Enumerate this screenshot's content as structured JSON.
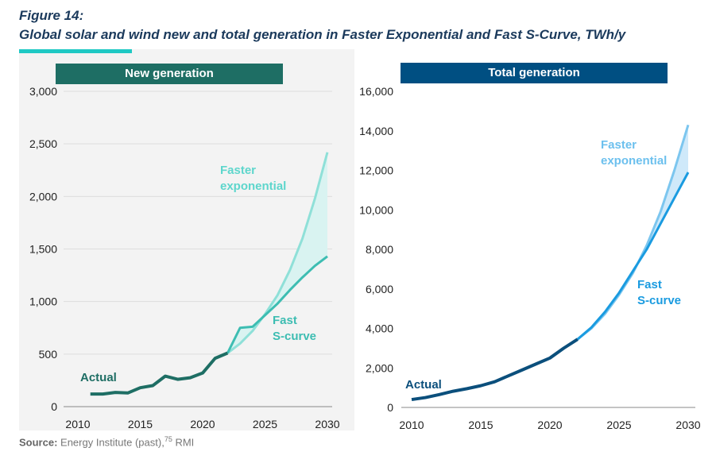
{
  "figure_label": "Figure 14:",
  "title": "Global solar and wind new and total generation in Faster Exponential and Fast S-Curve, TWh/y",
  "source": {
    "label": "Source:",
    "text": "Energy Institute (past),",
    "sup": "75",
    "tail": " RMI"
  },
  "colors": {
    "accent": "#1fc9c4",
    "left_header": "#1e6e64",
    "right_header": "#004f82"
  },
  "chart_data": [
    {
      "type": "line",
      "panel_title": "New generation",
      "ylim": [
        0,
        3000
      ],
      "yticks": [
        0,
        500,
        1000,
        1500,
        2000,
        2500,
        3000
      ],
      "yticklabels": [
        "0",
        "500",
        "1,000",
        "1,500",
        "2,000",
        "2,500",
        "3,000"
      ],
      "xlim": [
        2010,
        2030
      ],
      "xticks": [
        2010,
        2015,
        2020,
        2025,
        2030
      ],
      "grid": true,
      "series": [
        {
          "name": "Actual",
          "color": "#1e6e64",
          "x": [
            2011,
            2012,
            2013,
            2014,
            2015,
            2016,
            2017,
            2018,
            2019,
            2020,
            2021,
            2022
          ],
          "values": [
            120,
            120,
            135,
            130,
            180,
            200,
            290,
            260,
            275,
            320,
            460,
            510
          ]
        },
        {
          "name": "Faster exponential",
          "color": "#8fe0d8",
          "x": [
            2022,
            2023,
            2024,
            2025,
            2026,
            2027,
            2028,
            2029,
            2030
          ],
          "values": [
            510,
            600,
            720,
            880,
            1060,
            1300,
            1600,
            1980,
            2420
          ]
        },
        {
          "name": "Fast S-curve",
          "color": "#3dbdb2",
          "x": [
            2022,
            2023,
            2024,
            2025,
            2026,
            2027,
            2028,
            2029,
            2030
          ],
          "values": [
            510,
            750,
            760,
            870,
            980,
            1110,
            1230,
            1340,
            1430
          ]
        }
      ],
      "labels": {
        "actual": "Actual",
        "exp1": "Faster",
        "exp2": "exponential",
        "s1": "Fast",
        "s2": "S-curve"
      }
    },
    {
      "type": "line",
      "panel_title": "Total generation",
      "ylim": [
        0,
        16000
      ],
      "yticks": [
        0,
        2000,
        4000,
        6000,
        8000,
        10000,
        12000,
        14000,
        16000
      ],
      "yticklabels": [
        "0",
        "2,000",
        "4,000",
        "6,000",
        "8,000",
        "10,000",
        "12,000",
        "14,000",
        "16,000"
      ],
      "xlim": [
        2010,
        2030
      ],
      "xticks": [
        2010,
        2015,
        2020,
        2025,
        2030
      ],
      "grid": false,
      "series": [
        {
          "name": "Actual",
          "color": "#0b4f7c",
          "x": [
            2010,
            2011,
            2012,
            2013,
            2014,
            2015,
            2016,
            2017,
            2018,
            2019,
            2020,
            2021,
            2022
          ],
          "values": [
            400,
            500,
            650,
            820,
            950,
            1100,
            1300,
            1600,
            1900,
            2200,
            2500,
            3000,
            3450
          ]
        },
        {
          "name": "Faster exponential",
          "color": "#7cc6ef",
          "x": [
            2022,
            2023,
            2024,
            2025,
            2026,
            2027,
            2028,
            2029,
            2030
          ],
          "values": [
            3450,
            4000,
            4750,
            5700,
            6800,
            8200,
            9900,
            12000,
            14300
          ]
        },
        {
          "name": "Fast S-curve",
          "color": "#1a9be0",
          "x": [
            2022,
            2023,
            2024,
            2025,
            2026,
            2027,
            2028,
            2029,
            2030
          ],
          "values": [
            3450,
            4050,
            4850,
            5800,
            6900,
            8000,
            9300,
            10600,
            11900
          ]
        }
      ],
      "labels": {
        "actual": "Actual",
        "exp1": "Faster",
        "exp2": "exponential",
        "s1": "Fast",
        "s2": "S-curve"
      }
    }
  ]
}
